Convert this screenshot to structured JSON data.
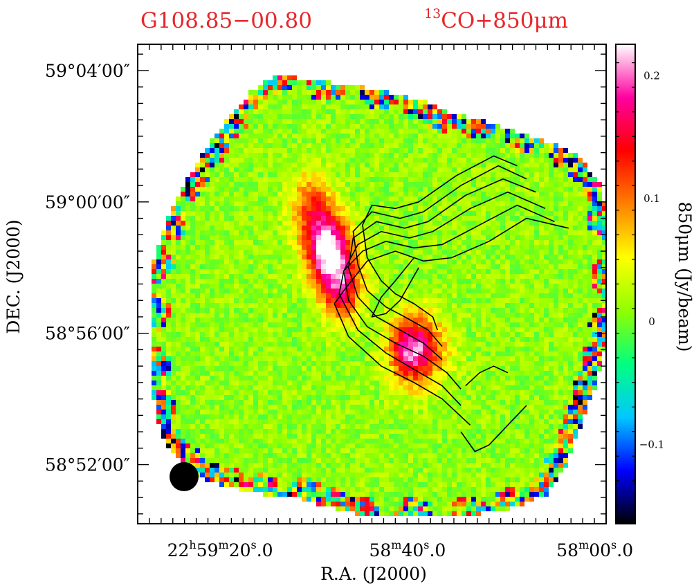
{
  "chart_data": {
    "type": "heatmap",
    "title_left": "G108.85−00.80",
    "title_right_sup": "13",
    "title_right": "CO+850μm",
    "xlabel": "R.A. (J2000)",
    "ylabel": "DEC. (J2000)",
    "colorbar_label": "850μm (Jy/beam)",
    "x_ticks": [
      {
        "h": "22",
        "m": "59",
        "s": "20",
        "frac": "0",
        "label_full": true
      },
      {
        "m": "58",
        "s": "40",
        "frac": "0",
        "label_full": false
      },
      {
        "m": "58",
        "s": "00",
        "frac": "0",
        "label_full": false
      }
    ],
    "x_tick_values_sec": [
      80,
      40,
      0
    ],
    "x_range_sec": [
      97,
      -3
    ],
    "y_ticks": [
      "59°04′00″",
      "59°00′00″",
      "58°56′00″",
      "58°52′00″"
    ],
    "y_tick_values_arcmin": [
      64,
      60,
      56,
      52
    ],
    "y_range_arcmin": [
      50.2,
      64.8
    ],
    "colorbar_ticks": [
      "0.2",
      "0.1",
      "0",
      "−0.1"
    ],
    "colorbar_tick_values": [
      0.2,
      0.1,
      0,
      -0.1
    ],
    "colorbar_range": [
      -0.165,
      0.225
    ],
    "colormap": [
      "#000000",
      "#0000ff",
      "#00c8ff",
      "#00ff80",
      "#90ff00",
      "#ffff00",
      "#ff8000",
      "#ff0000",
      "#ff00a0",
      "#ffffff"
    ],
    "beam": "filled circle, lower-left",
    "contours_13CO": [
      [
        [
          5,
          59.2
        ],
        [
          14,
          59.5
        ],
        [
          22,
          58.8
        ],
        [
          30,
          58.3
        ],
        [
          36,
          58.2
        ],
        [
          42,
          58.5
        ],
        [
          48,
          58.2
        ],
        [
          53,
          57.3
        ],
        [
          55,
          56.9
        ],
        [
          52,
          55.9
        ],
        [
          45,
          55.0
        ],
        [
          38,
          54.5
        ],
        [
          32,
          54.0
        ],
        [
          26,
          53.2
        ]
      ],
      [
        [
          8,
          59.4
        ],
        [
          16,
          59.9
        ],
        [
          24,
          59.3
        ],
        [
          32,
          58.7
        ],
        [
          38,
          58.6
        ],
        [
          44,
          58.8
        ],
        [
          49,
          58.5
        ],
        [
          53,
          57.9
        ],
        [
          54,
          57.2
        ],
        [
          50,
          56.1
        ],
        [
          44,
          55.4
        ],
        [
          38,
          54.9
        ],
        [
          32,
          54.4
        ],
        [
          28,
          53.8
        ]
      ],
      [
        [
          10,
          59.8
        ],
        [
          18,
          60.3
        ],
        [
          26,
          59.8
        ],
        [
          34,
          59.1
        ],
        [
          39,
          58.9
        ],
        [
          45,
          59.1
        ],
        [
          50,
          58.7
        ],
        [
          53,
          57.9
        ],
        [
          52,
          57.0
        ],
        [
          48,
          56.2
        ],
        [
          42,
          55.7
        ],
        [
          36,
          55.3
        ],
        [
          31,
          54.8
        ],
        [
          28,
          54.3
        ]
      ],
      [
        [
          12,
          60.3
        ],
        [
          19,
          60.7
        ],
        [
          27,
          60.2
        ],
        [
          35,
          59.4
        ],
        [
          40,
          59.2
        ],
        [
          46,
          59.4
        ],
        [
          51,
          58.9
        ],
        [
          52,
          58.0
        ],
        [
          50,
          57.1
        ],
        [
          46,
          56.5
        ],
        [
          41,
          56.1
        ],
        [
          36,
          55.7
        ],
        [
          32,
          55.2
        ]
      ],
      [
        [
          14,
          60.7
        ],
        [
          20,
          61.1
        ],
        [
          28,
          60.5
        ],
        [
          36,
          59.7
        ],
        [
          41,
          59.5
        ],
        [
          47,
          59.7
        ],
        [
          51,
          59.1
        ],
        [
          50,
          58.1
        ],
        [
          48,
          57.3
        ],
        [
          44,
          56.8
        ],
        [
          40,
          56.5
        ],
        [
          35,
          56.1
        ],
        [
          32,
          55.6
        ]
      ],
      [
        [
          16,
          61.1
        ],
        [
          21,
          61.4
        ],
        [
          29,
          60.8
        ],
        [
          37,
          60.0
        ],
        [
          42,
          59.8
        ],
        [
          47,
          59.9
        ],
        [
          49,
          59.3
        ],
        [
          48,
          58.3
        ],
        [
          45,
          57.6
        ],
        [
          42,
          57.2
        ],
        [
          38,
          56.9
        ],
        [
          34,
          56.5
        ],
        [
          33,
          56.1
        ]
      ],
      [
        [
          38,
          58.3
        ],
        [
          42,
          57.6
        ],
        [
          45,
          57.1
        ],
        [
          47,
          56.5
        ],
        [
          44,
          56.6
        ],
        [
          41,
          57.0
        ],
        [
          39,
          57.5
        ],
        [
          37,
          58.0
        ]
      ],
      [
        [
          14,
          53.8
        ],
        [
          18,
          53.2
        ],
        [
          22,
          52.6
        ],
        [
          25,
          52.4
        ],
        [
          28,
          53.0
        ]
      ],
      [
        [
          18,
          54.8
        ],
        [
          21,
          55.0
        ],
        [
          24,
          54.8
        ],
        [
          27,
          54.4
        ]
      ]
    ],
    "peaks_850um": [
      {
        "x": 56.5,
        "y": 58.6,
        "level": 0.22
      },
      {
        "x": 53.5,
        "y": 57.4,
        "level": 0.15
      },
      {
        "x": 39.0,
        "y": 55.5,
        "level": 0.18
      },
      {
        "x": 60.0,
        "y": 59.9,
        "level": 0.1
      },
      {
        "x": 34.0,
        "y": 55.5,
        "level": 0.07
      }
    ]
  }
}
